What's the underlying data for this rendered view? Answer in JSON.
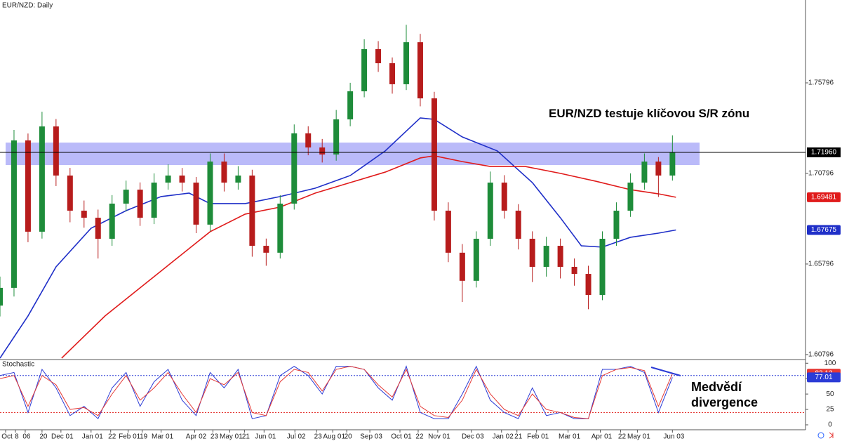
{
  "chart_data": [
    {
      "type": "candlestick",
      "title": "EUR/NZD: Daily",
      "annotation": "EUR/NZD testuje klíčovou S/R zónu",
      "up_color": "#1e8c3a",
      "down_color": "#b71c1c",
      "x": [
        0,
        2,
        4,
        6,
        8,
        10,
        12,
        14,
        16,
        18,
        20,
        22,
        24,
        26,
        28,
        30,
        32,
        34,
        36,
        38,
        40,
        42,
        44,
        46,
        48,
        50,
        52,
        54,
        56,
        58,
        60,
        62,
        64,
        66,
        68,
        70,
        72,
        74,
        76,
        78,
        80,
        82,
        84,
        86,
        88,
        90,
        92,
        94,
        96
      ],
      "open": [
        1.635,
        1.6448,
        1.7262,
        1.6758,
        1.7339,
        1.7068,
        1.6874,
        1.6835,
        1.6719,
        1.6913,
        1.699,
        1.6835,
        1.7029,
        1.7068,
        1.7029,
        1.6797,
        1.7145,
        1.7029,
        1.7068,
        1.668,
        1.6642,
        1.6913,
        1.7301,
        1.7223,
        1.7184,
        1.7378,
        1.7533,
        1.7766,
        1.7688,
        1.7572,
        1.7804,
        1.7494,
        1.6874,
        1.6642,
        1.6487,
        1.6719,
        1.7029,
        1.6874,
        1.6719,
        1.6564,
        1.668,
        1.6564,
        1.6525,
        1.6409,
        1.6719,
        1.6874,
        1.7029,
        1.7145,
        1.7068
      ],
      "high": [
        1.651,
        1.732,
        1.73,
        1.742,
        1.738,
        1.711,
        1.693,
        1.688,
        1.696,
        1.704,
        1.703,
        1.708,
        1.713,
        1.711,
        1.706,
        1.719,
        1.719,
        1.712,
        1.71,
        1.672,
        1.696,
        1.735,
        1.734,
        1.727,
        1.743,
        1.758,
        1.782,
        1.781,
        1.772,
        1.79,
        1.785,
        1.753,
        1.692,
        1.669,
        1.676,
        1.709,
        1.707,
        1.691,
        1.676,
        1.673,
        1.672,
        1.661,
        1.657,
        1.676,
        1.692,
        1.708,
        1.719,
        1.717,
        1.729
      ],
      "low": [
        1.629,
        1.64,
        1.67,
        1.672,
        1.701,
        1.681,
        1.678,
        1.661,
        1.668,
        1.687,
        1.679,
        1.68,
        1.699,
        1.698,
        1.675,
        1.676,
        1.698,
        1.699,
        1.662,
        1.657,
        1.661,
        1.688,
        1.718,
        1.714,
        1.715,
        1.734,
        1.75,
        1.764,
        1.752,
        1.754,
        1.745,
        1.682,
        1.659,
        1.637,
        1.645,
        1.668,
        1.683,
        1.666,
        1.648,
        1.651,
        1.65,
        1.646,
        1.633,
        1.638,
        1.668,
        1.684,
        1.699,
        1.695,
        1.704
      ],
      "close": [
        1.6448,
        1.7262,
        1.6758,
        1.7339,
        1.7068,
        1.6874,
        1.6835,
        1.6719,
        1.6913,
        1.699,
        1.6835,
        1.7029,
        1.7068,
        1.7029,
        1.6797,
        1.7145,
        1.7029,
        1.7068,
        1.668,
        1.6642,
        1.6913,
        1.7301,
        1.7223,
        1.7184,
        1.7378,
        1.7533,
        1.7766,
        1.7688,
        1.7572,
        1.7804,
        1.7494,
        1.6874,
        1.6642,
        1.6487,
        1.6719,
        1.7029,
        1.6874,
        1.6719,
        1.6564,
        1.668,
        1.6564,
        1.6525,
        1.6409,
        1.6719,
        1.6874,
        1.7029,
        1.7145,
        1.7068,
        1.7196
      ],
      "series": [
        {
          "color": "#1f2fc8",
          "x": [
            0,
            4,
            8,
            13,
            18,
            23,
            27,
            30,
            35,
            40,
            45,
            50,
            55,
            60,
            62,
            66,
            71,
            76,
            80,
            83,
            86,
            90,
            94,
            96.5
          ],
          "values": [
            1.606,
            1.6293,
            1.6564,
            1.6777,
            1.6874,
            1.6952,
            1.6971,
            1.6913,
            1.6913,
            1.6952,
            1.6998,
            1.7068,
            1.7204,
            1.7386,
            1.7378,
            1.7281,
            1.7204,
            1.7029,
            1.6835,
            1.668,
            1.6673,
            1.6727,
            1.675,
            1.67675
          ]
        },
        {
          "color": "#e01b1b",
          "x": [
            8.8,
            15,
            20,
            25,
            30,
            35,
            40,
            45,
            50,
            55,
            60,
            62,
            66,
            70,
            75,
            80,
            85,
            90,
            94,
            96.5
          ],
          "values": [
            1.606,
            1.6293,
            1.6448,
            1.6603,
            1.6758,
            1.6855,
            1.6894,
            1.6971,
            1.7029,
            1.7087,
            1.7165,
            1.7177,
            1.7145,
            1.7118,
            1.7118,
            1.708,
            1.7037,
            1.699,
            1.6967,
            1.69481
          ]
        }
      ],
      "zone": {
        "low": 1.7126,
        "high": 1.725,
        "color": "#8c8cf5"
      },
      "last_price": {
        "value": 1.7196,
        "label": "1.71960"
      },
      "xlim": [
        0,
        115
      ],
      "ylim": [
        1.606,
        1.8037
      ],
      "yticks": [
        1.60796,
        1.65796,
        1.70796,
        1.75796
      ],
      "xticks": [
        {
          "value": 0.8,
          "label": "Oct"
        },
        {
          "value": 2.2,
          "label": "8"
        },
        {
          "value": 3.6,
          "label": "06"
        },
        {
          "value": 6.0,
          "label": "20"
        },
        {
          "value": 8.7,
          "label": "Dec 01"
        },
        {
          "value": 13.0,
          "label": "Jan 01"
        },
        {
          "value": 15.8,
          "label": "22"
        },
        {
          "value": 18.3,
          "label": "Feb 01"
        },
        {
          "value": 20.3,
          "label": "19"
        },
        {
          "value": 23.0,
          "label": "Mar 01"
        },
        {
          "value": 27.8,
          "label": "Apr 02"
        },
        {
          "value": 30.4,
          "label": "23"
        },
        {
          "value": 32.8,
          "label": "May 01"
        },
        {
          "value": 34.9,
          "label": "21"
        },
        {
          "value": 37.7,
          "label": "Jun 01"
        },
        {
          "value": 42.1,
          "label": "Jul 02"
        },
        {
          "value": 45.2,
          "label": "23"
        },
        {
          "value": 47.5,
          "label": "Aug 01"
        },
        {
          "value": 49.5,
          "label": "20"
        },
        {
          "value": 52.8,
          "label": "Sep 03"
        },
        {
          "value": 57.1,
          "label": "Oct 01"
        },
        {
          "value": 59.7,
          "label": "22"
        },
        {
          "value": 62.5,
          "label": "Nov 01"
        },
        {
          "value": 67.3,
          "label": "Dec 03"
        },
        {
          "value": 71.6,
          "label": "Jan 02"
        },
        {
          "value": 73.8,
          "label": "21"
        },
        {
          "value": 76.6,
          "label": "Feb 01"
        },
        {
          "value": 81.1,
          "label": "Mar 01"
        },
        {
          "value": 85.7,
          "label": "Apr 01"
        },
        {
          "value": 88.6,
          "label": "22"
        },
        {
          "value": 91.0,
          "label": "May 01"
        },
        {
          "value": 96.0,
          "label": "Jun 03"
        }
      ]
    },
    {
      "type": "line",
      "title": "Stochastic",
      "annotation": "Medvědí divergence",
      "x": [
        0,
        2,
        4,
        6,
        8,
        10,
        12,
        14,
        16,
        18,
        20,
        22,
        24,
        26,
        28,
        30,
        32,
        34,
        36,
        38,
        40,
        42,
        44,
        46,
        48,
        50,
        52,
        54,
        56,
        58,
        60,
        62,
        64,
        66,
        68,
        70,
        72,
        74,
        76,
        78,
        80,
        82,
        84,
        86,
        88,
        90,
        92,
        94,
        96
      ],
      "series": [
        {
          "color": "#2b3bd6",
          "values": [
            80,
            85,
            20,
            90,
            60,
            15,
            30,
            10,
            60,
            85,
            30,
            70,
            90,
            40,
            15,
            85,
            60,
            90,
            10,
            15,
            80,
            95,
            80,
            50,
            95,
            95,
            90,
            60,
            40,
            95,
            20,
            10,
            10,
            50,
            95,
            40,
            20,
            10,
            60,
            15,
            20,
            10,
            10,
            90,
            90,
            95,
            85,
            20,
            77.01
          ]
        },
        {
          "color": "#e53935",
          "values": [
            75,
            80,
            30,
            80,
            65,
            25,
            28,
            15,
            50,
            80,
            40,
            60,
            85,
            50,
            20,
            75,
            65,
            85,
            20,
            15,
            70,
            90,
            85,
            55,
            90,
            95,
            90,
            65,
            45,
            90,
            30,
            15,
            12,
            40,
            90,
            50,
            25,
            15,
            50,
            25,
            20,
            12,
            10,
            80,
            90,
            93,
            88,
            30,
            83.12
          ]
        }
      ],
      "levels": [
        {
          "value": 80,
          "color": "#2b3bd6"
        },
        {
          "value": 20,
          "color": "#e53935"
        }
      ],
      "xlim": [
        0,
        115
      ],
      "ylim": [
        -8,
        106
      ],
      "yticks": [
        0,
        25,
        50,
        75,
        100
      ]
    }
  ]
}
